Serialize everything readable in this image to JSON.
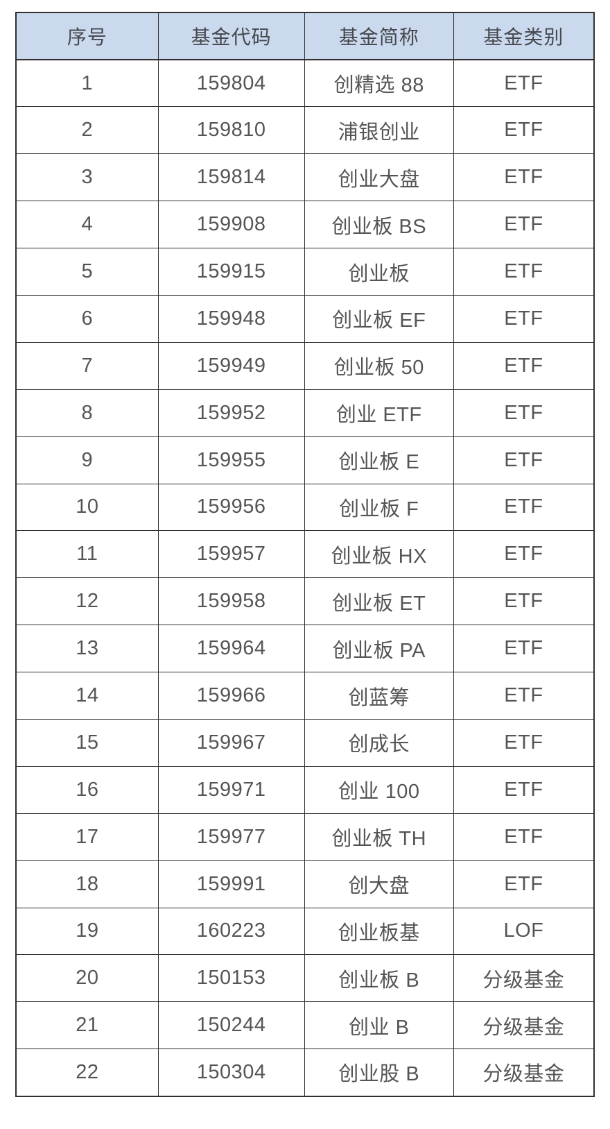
{
  "table": {
    "columns": [
      {
        "key": "no",
        "label": "序号"
      },
      {
        "key": "code",
        "label": "基金代码"
      },
      {
        "key": "name",
        "label": "基金简称"
      },
      {
        "key": "category",
        "label": "基金类别"
      }
    ],
    "colors": {
      "header_bg": "#cbd9ee",
      "border": "#2f2f2f",
      "header_text": "#46494e",
      "cell_text": "#555555",
      "page_bg": "#ffffff"
    },
    "rows": [
      {
        "no": "1",
        "code": "159804",
        "name": "创精选 88",
        "category": "ETF"
      },
      {
        "no": "2",
        "code": "159810",
        "name": "浦银创业",
        "category": "ETF"
      },
      {
        "no": "3",
        "code": "159814",
        "name": "创业大盘",
        "category": "ETF"
      },
      {
        "no": "4",
        "code": "159908",
        "name": "创业板 BS",
        "category": "ETF"
      },
      {
        "no": "5",
        "code": "159915",
        "name": "创业板",
        "category": "ETF"
      },
      {
        "no": "6",
        "code": "159948",
        "name": "创业板 EF",
        "category": "ETF"
      },
      {
        "no": "7",
        "code": "159949",
        "name": "创业板 50",
        "category": "ETF"
      },
      {
        "no": "8",
        "code": "159952",
        "name": "创业 ETF",
        "category": "ETF"
      },
      {
        "no": "9",
        "code": "159955",
        "name": "创业板 E",
        "category": "ETF"
      },
      {
        "no": "10",
        "code": "159956",
        "name": "创业板 F",
        "category": "ETF"
      },
      {
        "no": "11",
        "code": "159957",
        "name": "创业板 HX",
        "category": "ETF"
      },
      {
        "no": "12",
        "code": "159958",
        "name": "创业板 ET",
        "category": "ETF"
      },
      {
        "no": "13",
        "code": "159964",
        "name": "创业板 PA",
        "category": "ETF"
      },
      {
        "no": "14",
        "code": "159966",
        "name": "创蓝筹",
        "category": "ETF"
      },
      {
        "no": "15",
        "code": "159967",
        "name": "创成长",
        "category": "ETF"
      },
      {
        "no": "16",
        "code": "159971",
        "name": "创业 100",
        "category": "ETF"
      },
      {
        "no": "17",
        "code": "159977",
        "name": "创业板 TH",
        "category": "ETF"
      },
      {
        "no": "18",
        "code": "159991",
        "name": "创大盘",
        "category": "ETF"
      },
      {
        "no": "19",
        "code": "160223",
        "name": "创业板基",
        "category": "LOF"
      },
      {
        "no": "20",
        "code": "150153",
        "name": "创业板 B",
        "category": "分级基金"
      },
      {
        "no": "21",
        "code": "150244",
        "name": "创业 B",
        "category": "分级基金"
      },
      {
        "no": "22",
        "code": "150304",
        "name": "创业股 B",
        "category": "分级基金"
      }
    ]
  }
}
